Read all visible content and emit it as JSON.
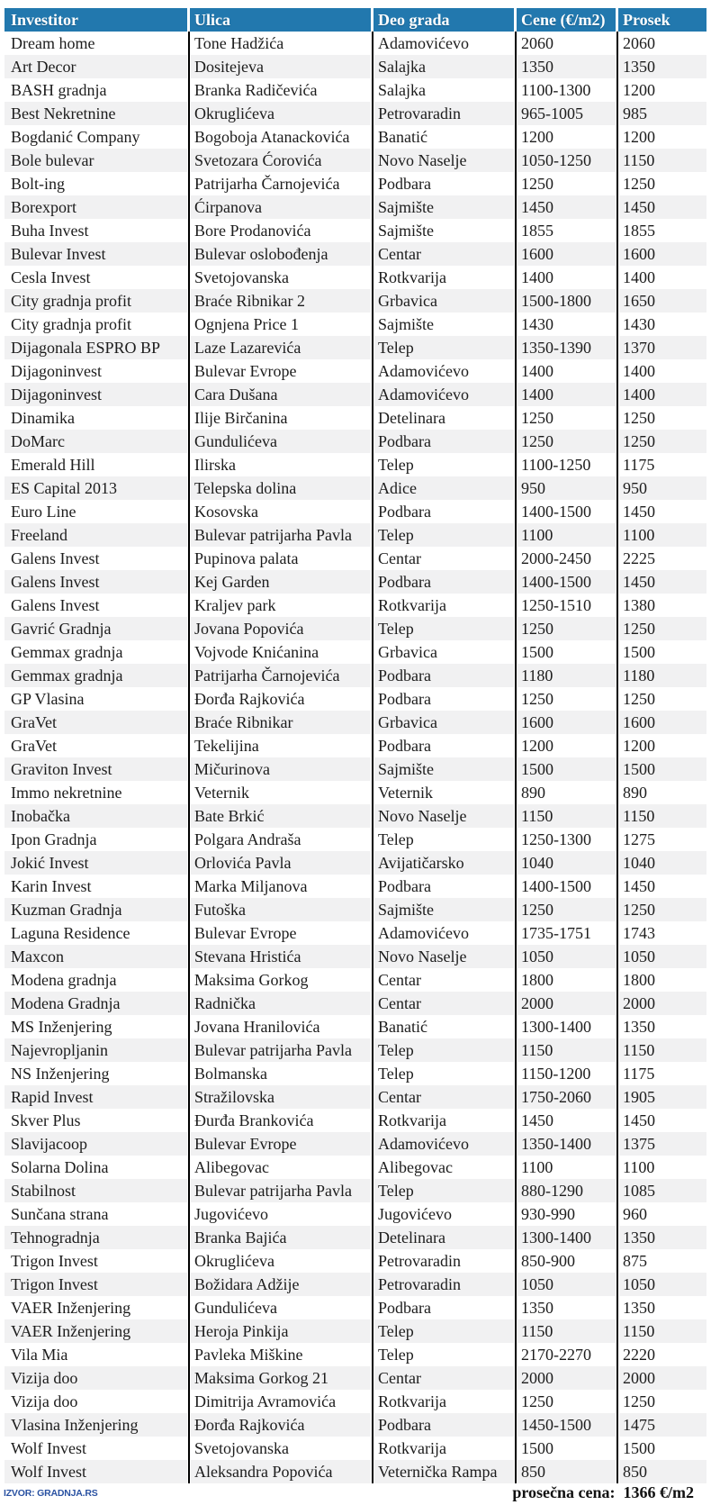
{
  "chart_data": {
    "type": "table",
    "title": "",
    "columns": [
      {
        "key": "investitor",
        "label": "Investitor"
      },
      {
        "key": "ulica",
        "label": "Ulica"
      },
      {
        "key": "deo_grada",
        "label": "Deo grada"
      },
      {
        "key": "cene",
        "label": "Cene (€/m2)"
      },
      {
        "key": "prosek",
        "label": "Prosek"
      }
    ],
    "rows": [
      [
        "Dream home",
        "Tone Hadžića",
        "Adamovićevo",
        "2060",
        "2060"
      ],
      [
        "Art Decor",
        "Dositejeva",
        "Salajka",
        "1350",
        "1350"
      ],
      [
        "BASH gradnja",
        "Branka Radičevića",
        "Salajka",
        "1100-1300",
        "1200"
      ],
      [
        "Best Nekretnine",
        "Okruglićeva",
        "Petrovaradin",
        "965-1005",
        "985"
      ],
      [
        "Bogdanić Company",
        "Bogoboja Atanackovića",
        "Banatić",
        "1200",
        "1200"
      ],
      [
        "Bole bulevar",
        "Svetozara Ćorovića",
        "Novo Naselje",
        "1050-1250",
        "1150"
      ],
      [
        "Bolt-ing",
        "Patrijarha Čarnojevića",
        "Podbara",
        "1250",
        "1250"
      ],
      [
        "Borexport",
        "Ćirpanova",
        "Sajmište",
        "1450",
        "1450"
      ],
      [
        "Buha Invest",
        "Bore Prodanovića",
        "Sajmište",
        "1855",
        "1855"
      ],
      [
        "Bulevar Invest",
        "Bulevar oslobođenja",
        "Centar",
        "1600",
        "1600"
      ],
      [
        "Cesla Invest",
        "Svetojovanska",
        "Rotkvarija",
        "1400",
        "1400"
      ],
      [
        "City gradnja profit",
        "Braće Ribnikar 2",
        "Grbavica",
        "1500-1800",
        "1650"
      ],
      [
        "City gradnja profit",
        "Ognjena Price 1",
        "Sajmište",
        "1430",
        "1430"
      ],
      [
        "Dijagonala ESPRO BP",
        "Laze Lazarevića",
        "Telep",
        "1350-1390",
        "1370"
      ],
      [
        "Dijagoninvest",
        "Bulevar Evrope",
        "Adamovićevo",
        "1400",
        "1400"
      ],
      [
        "Dijagoninvest",
        "Cara Dušana",
        "Adamovićevo",
        "1400",
        "1400"
      ],
      [
        "Dinamika",
        "Ilije Birčanina",
        "Detelinara",
        "1250",
        "1250"
      ],
      [
        "DoMarc",
        "Gundulićeva",
        "Podbara",
        "1250",
        "1250"
      ],
      [
        "Emerald Hill",
        "Ilirska",
        "Telep",
        "1100-1250",
        "1175"
      ],
      [
        "ES Capital 2013",
        "Telepska dolina",
        "Adice",
        "950",
        "950"
      ],
      [
        "Euro Line",
        "Kosovska",
        "Podbara",
        "1400-1500",
        "1450"
      ],
      [
        "Freeland",
        "Bulevar patrijarha Pavla",
        "Telep",
        "1100",
        "1100"
      ],
      [
        "Galens Invest",
        "Pupinova palata",
        "Centar",
        "2000-2450",
        "2225"
      ],
      [
        "Galens Invest",
        "Kej Garden",
        "Podbara",
        "1400-1500",
        "1450"
      ],
      [
        "Galens Invest",
        "Kraljev park",
        "Rotkvarija",
        "1250-1510",
        "1380"
      ],
      [
        "Gavrić Gradnja",
        "Jovana Popovića",
        "Telep",
        "1250",
        "1250"
      ],
      [
        "Gemmax gradnja",
        "Vojvode Knićanina",
        "Grbavica",
        "1500",
        "1500"
      ],
      [
        "Gemmax gradnja",
        "Patrijarha Čarnojevića",
        "Podbara",
        "1180",
        "1180"
      ],
      [
        "GP Vlasina",
        "Đorđa Rajkovića",
        "Podbara",
        "1250",
        "1250"
      ],
      [
        "GraVet",
        "Braće Ribnikar",
        "Grbavica",
        "1600",
        "1600"
      ],
      [
        "GraVet",
        "Tekelijina",
        "Podbara",
        "1200",
        "1200"
      ],
      [
        "Graviton Invest",
        "Mičurinova",
        "Sajmište",
        "1500",
        "1500"
      ],
      [
        "Immo nekretnine",
        "Veternik",
        "Veternik",
        "890",
        "890"
      ],
      [
        "Inobačka",
        "Bate Brkić",
        "Novo Naselje",
        "1150",
        "1150"
      ],
      [
        "Ipon Gradnja",
        "Polgara Andraša",
        "Telep",
        "1250-1300",
        "1275"
      ],
      [
        "Jokić Invest",
        "Orlovića Pavla",
        "Avijatičarsko",
        "1040",
        "1040"
      ],
      [
        "Karin Invest",
        "Marka Miljanova",
        "Podbara",
        "1400-1500",
        "1450"
      ],
      [
        "Kuzman Gradnja",
        "Futoška",
        "Sajmište",
        "1250",
        "1250"
      ],
      [
        "Laguna Residence",
        "Bulevar Evrope",
        "Adamovićevo",
        "1735-1751",
        "1743"
      ],
      [
        "Maxcon",
        "Stevana Hristića",
        "Novo Naselje",
        "1050",
        "1050"
      ],
      [
        "Modena gradnja",
        "Maksima Gorkog",
        "Centar",
        "1800",
        "1800"
      ],
      [
        "Modena Gradnja",
        "Radnička",
        "Centar",
        "2000",
        "2000"
      ],
      [
        "MS Inženjering",
        "Jovana Hranilovića",
        "Banatić",
        "1300-1400",
        "1350"
      ],
      [
        "Najevropljanin",
        "Bulevar patrijarha Pavla",
        "Telep",
        "1150",
        "1150"
      ],
      [
        "NS Inženjering",
        "Bolmanska",
        "Telep",
        "1150-1200",
        "1175"
      ],
      [
        "Rapid Invest",
        "Stražilovska",
        "Centar",
        "1750-2060",
        "1905"
      ],
      [
        "Skver Plus",
        "Đurđa Brankovića",
        "Rotkvarija",
        "1450",
        "1450"
      ],
      [
        "Slavijacoop",
        "Bulevar Evrope",
        "Adamovićevo",
        "1350-1400",
        "1375"
      ],
      [
        "Solarna Dolina",
        "Alibegovac",
        "Alibegovac",
        "1100",
        "1100"
      ],
      [
        "Stabilnost",
        "Bulevar patrijarha Pavla",
        "Telep",
        "880-1290",
        "1085"
      ],
      [
        "Sunčana strana",
        "Jugovićevo",
        "Jugovićevo",
        "930-990",
        "960"
      ],
      [
        "Tehnogradnja",
        "Branka Bajića",
        "Detelinara",
        "1300-1400",
        "1350"
      ],
      [
        "Trigon Invest",
        "Okruglićeva",
        "Petrovaradin",
        "850-900",
        "875"
      ],
      [
        "Trigon Invest",
        "Božidara Adžije",
        "Petrovaradin",
        "1050",
        "1050"
      ],
      [
        "VAER Inženjering",
        "Gundulićeva",
        "Podbara",
        "1350",
        "1350"
      ],
      [
        "VAER Inženjering",
        "Heroja Pinkija",
        "Telep",
        "1150",
        "1150"
      ],
      [
        "Vila Mia",
        "Pavleka Miškine",
        "Telep",
        "2170-2270",
        "2220"
      ],
      [
        "Vizija doo",
        "Maksima Gorkog 21",
        "Centar",
        "2000",
        "2000"
      ],
      [
        "Vizija doo",
        "Dimitrija Avramovića",
        "Rotkvarija",
        "1250",
        "1250"
      ],
      [
        "Vlasina Inženjering",
        "Đorđa Rajkovića",
        "Podbara",
        "1450-1500",
        "1475"
      ],
      [
        "Wolf Invest",
        "Svetojovanska",
        "Rotkvarija",
        "1500",
        "1500"
      ],
      [
        "Wolf Invest",
        "Aleksandra Popovića",
        "Veternička Rampa",
        "850",
        "850"
      ]
    ]
  },
  "footer": {
    "source": "IZVOR: GRADNJA.RS",
    "average_label": "prosečna cena:",
    "average_value": "1366 €/m2"
  },
  "colors": {
    "header_bg": "#2278ae",
    "header_text": "#ffffff",
    "row_bg": "#ffffff",
    "row_alt_bg": "#f1f1f2",
    "body_text": "#1c1c1c",
    "column_rule": "#000000",
    "source_text": "#2a52a2",
    "average_text": "#111111"
  }
}
